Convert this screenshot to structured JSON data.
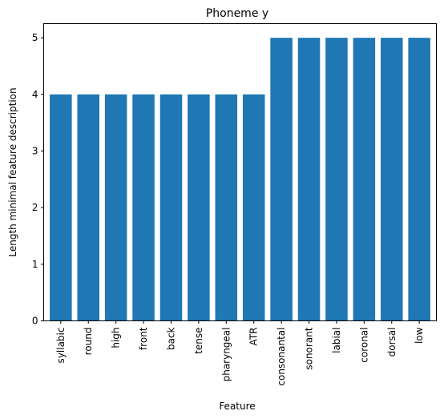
{
  "chart_data": {
    "type": "bar",
    "title": "Phoneme y",
    "xlabel": "Feature",
    "ylabel": "Length minimal feature description",
    "categories": [
      "syllabic",
      "round",
      "high",
      "front",
      "back",
      "tense",
      "pharyngeal",
      "ATR",
      "consonantal",
      "sonorant",
      "labial",
      "coronal",
      "dorsal",
      "low"
    ],
    "values": [
      4,
      4,
      4,
      4,
      4,
      4,
      4,
      4,
      5,
      5,
      5,
      5,
      5,
      5
    ],
    "ylim": [
      0,
      5.25
    ],
    "yticks": [
      0,
      1,
      2,
      3,
      4,
      5
    ],
    "bar_color": "#1f77b4",
    "grid": false,
    "legend": "none"
  }
}
